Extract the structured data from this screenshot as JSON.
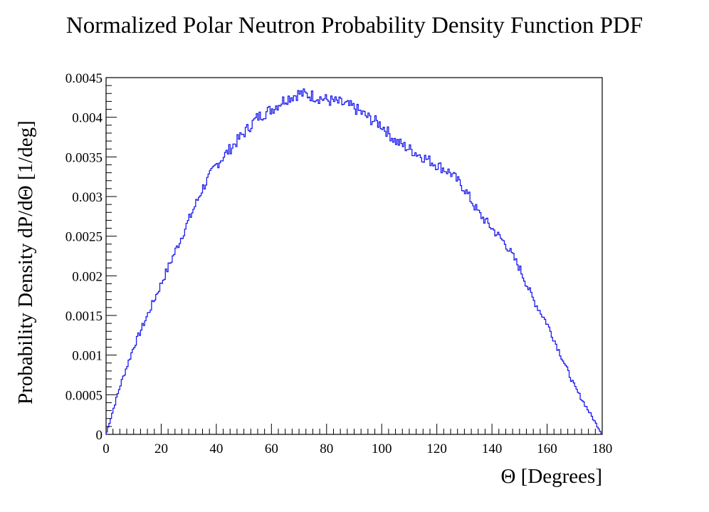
{
  "chart_data": {
    "type": "line",
    "style": "step-histogram",
    "title": "Normalized Polar Neutron Probability Density Function PDF",
    "xlabel": "Θ [Degrees]",
    "ylabel": "Probability Density dP/dΘ [1/deg]",
    "xlim": [
      0,
      180
    ],
    "ylim": [
      0,
      0.0045
    ],
    "x_ticks": [
      0,
      20,
      40,
      60,
      80,
      100,
      120,
      140,
      160,
      180
    ],
    "x_tick_labels": [
      "0",
      "20",
      "40",
      "60",
      "80",
      "100",
      "120",
      "140",
      "160",
      "180"
    ],
    "y_ticks": [
      0,
      0.0005,
      0.001,
      0.0015,
      0.002,
      0.0025,
      0.003,
      0.0035,
      0.004,
      0.0045
    ],
    "y_tick_labels": [
      "0",
      "0.0005",
      "0.001",
      "0.0015",
      "0.002",
      "0.0025",
      "0.003",
      "0.0035",
      "0.004",
      "0.0045"
    ],
    "grid": false,
    "line_color": "#1a1aee",
    "series": [
      {
        "name": "PDF",
        "x": [
          0,
          5,
          10,
          15,
          20,
          25,
          30,
          35,
          40,
          45,
          50,
          55,
          60,
          65,
          70,
          75,
          80,
          85,
          90,
          95,
          100,
          105,
          110,
          115,
          120,
          125,
          130,
          135,
          140,
          145,
          150,
          155,
          160,
          165,
          170,
          175,
          180
        ],
        "y": [
          0,
          0.0006,
          0.0011,
          0.0015,
          0.0019,
          0.0023,
          0.0027,
          0.0031,
          0.0034,
          0.0036,
          0.0038,
          0.004,
          0.0041,
          0.00423,
          0.0043,
          0.00427,
          0.00422,
          0.00418,
          0.00412,
          0.004,
          0.0039,
          0.0037,
          0.0036,
          0.0035,
          0.0034,
          0.0033,
          0.0031,
          0.0028,
          0.0026,
          0.0024,
          0.0021,
          0.0017,
          0.0014,
          0.001,
          0.0006,
          0.0003,
          0
        ]
      }
    ]
  }
}
